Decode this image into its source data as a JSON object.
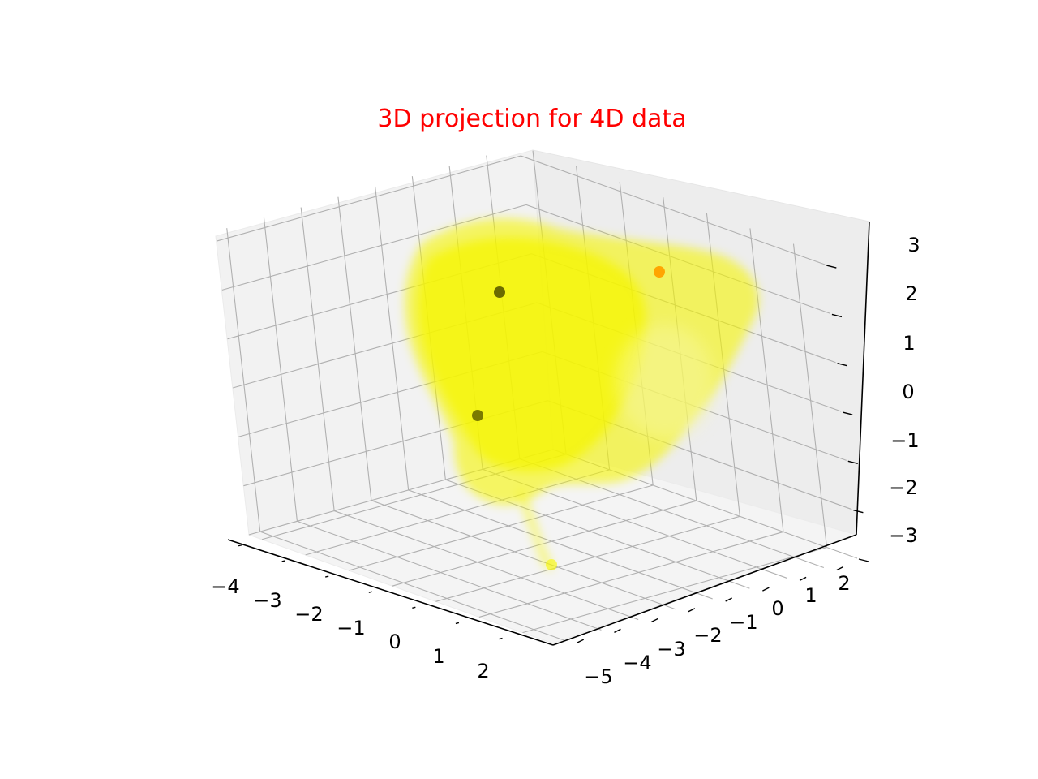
{
  "chart_data": {
    "type": "scatter",
    "projection": "3d",
    "title": "3D projection for 4D data",
    "title_color": "#ff0000",
    "xlabel": "",
    "ylabel": "",
    "zlabel": "",
    "grid": true,
    "xlim": [
      -4.3,
      2.7
    ],
    "ylim": [
      -5.3,
      2.9
    ],
    "zlim": [
      -3,
      3.2
    ],
    "x_ticks": [
      -4,
      -3,
      -2,
      -1,
      0,
      1,
      2
    ],
    "y_ticks": [
      -5,
      -4,
      -3,
      -2,
      -1,
      0,
      1,
      2
    ],
    "z_ticks": [
      -3,
      -2,
      -1,
      0,
      1,
      2,
      3
    ],
    "x_tick_labels": [
      "−4",
      "−3",
      "−2",
      "−1",
      "0",
      "1",
      "2"
    ],
    "y_tick_labels": [
      "−5",
      "−4",
      "−3",
      "−2",
      "−1",
      "0",
      "1",
      "2"
    ],
    "z_tick_labels": [
      "−3",
      "−2",
      "−1",
      "0",
      "1",
      "2",
      "3"
    ],
    "cloud": {
      "color": "#f5f500",
      "description": "dense low-alpha point cloud"
    },
    "highlight_points": [
      {
        "x": -2.9,
        "y": -2.4,
        "z": 1.8,
        "color": "#6b6b00"
      },
      {
        "x": -3.7,
        "y": -2.9,
        "z": -0.4,
        "color": "#7a7a00"
      },
      {
        "x": -0.2,
        "y": 1.4,
        "z": 2.7,
        "color": "#ffa500"
      }
    ]
  }
}
